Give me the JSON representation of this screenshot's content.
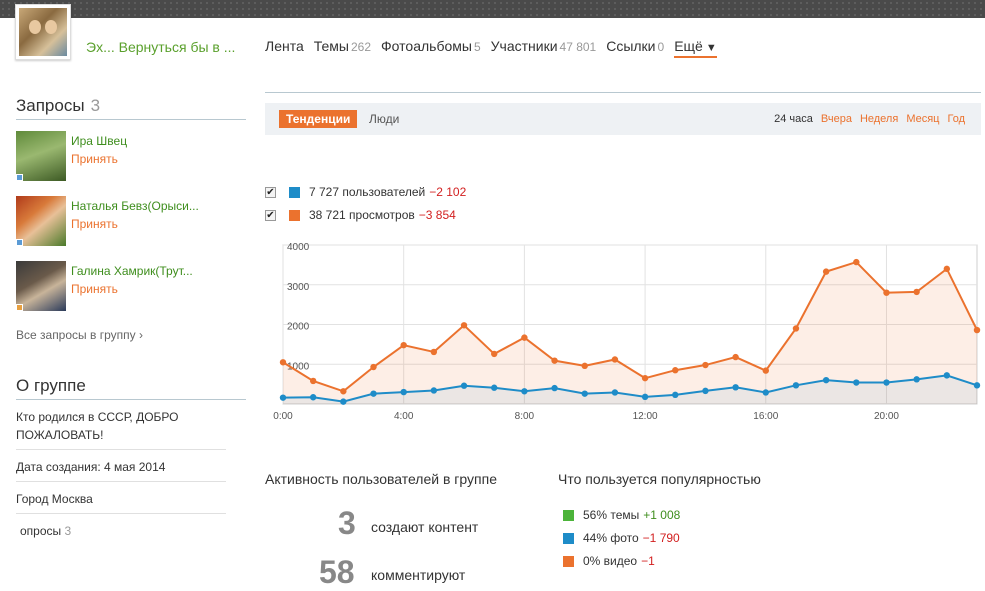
{
  "header": {
    "group_name": "Эх... Вернуться бы в ...",
    "nav": [
      {
        "label": "Лента",
        "count": ""
      },
      {
        "label": "Темы",
        "count": "262"
      },
      {
        "label": "Фотоальбомы",
        "count": "5"
      },
      {
        "label": "Участники",
        "count": "47 801"
      },
      {
        "label": "Ссылки",
        "count": "0"
      }
    ],
    "more_label": "Ещё",
    "more_arrow": "▼"
  },
  "sidebar": {
    "requests_title": "Запросы",
    "requests_count": "3",
    "requests": [
      {
        "name": "Ира Швец",
        "accept": "Принять"
      },
      {
        "name": "Наталья Бевз(Орыси...",
        "accept": "Принять"
      },
      {
        "name": "Галина Хамрик(Трут...",
        "accept": "Принять"
      }
    ],
    "all_requests": "Все запросы в группу ›",
    "about_title": "О группе",
    "about_text": "Кто родился в СССР,  ДОБРО ПОЖАЛОВАТЬ!",
    "created": "Дата создания: 4 мая 2014",
    "city": "Город Москва",
    "polls_label": "опросы",
    "polls_count": "3"
  },
  "stats": {
    "tab_trends": "Тенденции",
    "tab_people": "Люди",
    "periods": {
      "current": "24 часа",
      "links": [
        "Вчера",
        "Неделя",
        "Месяц",
        "Год"
      ]
    },
    "legend": [
      {
        "text": "7 727 пользователей",
        "delta": "−2 102",
        "color": "#1e8cc8",
        "checked": "✔"
      },
      {
        "text": "38 721 просмотров",
        "delta": "−3 854",
        "color": "#eb722e",
        "checked": "✔"
      }
    ]
  },
  "chart_data": {
    "type": "line",
    "x_tick_labels": [
      "0:00",
      "4:00",
      "8:00",
      "12:00",
      "16:00",
      "20:00"
    ],
    "y_tick_labels": [
      "1000",
      "2000",
      "3000",
      "4000"
    ],
    "ylim": [
      0,
      4000
    ],
    "x": [
      0,
      1,
      2,
      3,
      4,
      5,
      6,
      7,
      8,
      9,
      10,
      11,
      12,
      13,
      14,
      15,
      16,
      17,
      18,
      19,
      20,
      21,
      22,
      23
    ],
    "series": [
      {
        "name": "просмотров",
        "color": "#eb722e",
        "values": [
          1050,
          580,
          320,
          930,
          1480,
          1310,
          1980,
          1260,
          1670,
          1090,
          960,
          1120,
          650,
          850,
          980,
          1180,
          840,
          1900,
          3330,
          3570,
          2800,
          2820,
          3400,
          1860
        ]
      },
      {
        "name": "пользователей",
        "color": "#1e8cc8",
        "values": [
          160,
          170,
          60,
          260,
          300,
          340,
          460,
          410,
          320,
          400,
          260,
          290,
          180,
          230,
          330,
          420,
          290,
          470,
          600,
          540,
          540,
          620,
          720,
          470
        ]
      }
    ]
  },
  "activity": {
    "title": "Активность пользователей в группе",
    "rows": [
      {
        "value": "3",
        "label": "создают контент"
      },
      {
        "value": "58",
        "label": "комментируют"
      }
    ]
  },
  "popular": {
    "title": "Что пользуется популярностью",
    "rows": [
      {
        "text": "56% темы",
        "delta": "+1 008",
        "color": "#4cb43a",
        "sign": "pos"
      },
      {
        "text": "44% фото",
        "delta": "−1 790",
        "color": "#1e8cc8",
        "sign": "neg"
      },
      {
        "text": "0% видео",
        "delta": "−1",
        "color": "#eb722e",
        "sign": "neg"
      }
    ]
  }
}
